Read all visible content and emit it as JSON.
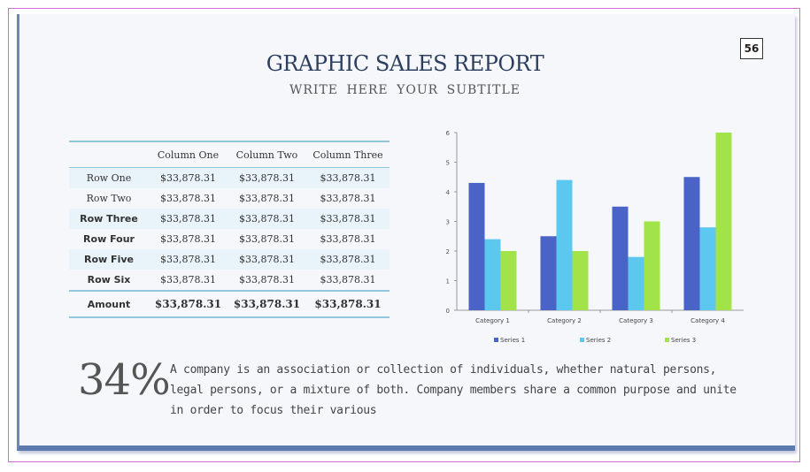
{
  "slide_number": "56",
  "title": "GRAPHIC SALES REPORT",
  "subtitle": "WRITE HERE YOUR SUBTITLE",
  "table": {
    "columns": [
      "",
      "Column One",
      "Column Two",
      "Column Three"
    ],
    "rows": [
      {
        "label": "Row One",
        "bold": false,
        "values": [
          "$33,878.31",
          "$33,878.31",
          "$33,878.31"
        ]
      },
      {
        "label": "Row Two",
        "bold": false,
        "values": [
          "$33,878.31",
          "$33,878.31",
          "$33,878.31"
        ]
      },
      {
        "label": "Row Three",
        "bold": true,
        "values": [
          "$33,878.31",
          "$33,878.31",
          "$33,878.31"
        ]
      },
      {
        "label": "Row Four",
        "bold": true,
        "values": [
          "$33,878.31",
          "$33,878.31",
          "$33,878.31"
        ]
      },
      {
        "label": "Row Five",
        "bold": true,
        "values": [
          "$33,878.31",
          "$33,878.31",
          "$33,878.31"
        ]
      },
      {
        "label": "Row Six",
        "bold": true,
        "values": [
          "$33,878.31",
          "$33,878.31",
          "$33,878.31"
        ]
      }
    ],
    "footer": {
      "label": "Amount",
      "values": [
        "$33,878.31",
        "$33,878.31",
        "$33,878.31"
      ]
    }
  },
  "chart_data": {
    "type": "bar",
    "categories": [
      "Category 1",
      "Category 2",
      "Category 3",
      "Category 4"
    ],
    "series": [
      {
        "name": "Series 1",
        "color": "#4a63c7",
        "values": [
          4.3,
          2.5,
          3.5,
          4.5
        ]
      },
      {
        "name": "Series 2",
        "color": "#5cc8f0",
        "values": [
          2.4,
          4.4,
          1.8,
          2.8
        ]
      },
      {
        "name": "Series 3",
        "color": "#a3e34a",
        "values": [
          2.0,
          2.0,
          3.0,
          6.0
        ]
      }
    ],
    "ylim": [
      0,
      6
    ],
    "yticks": [
      "0",
      "1",
      "2",
      "3",
      "4",
      "5",
      "6"
    ],
    "legend_position": "bottom",
    "grid": false
  },
  "highlight": {
    "percent": "34%",
    "text": "A company is an association or collection of individuals, whether natural persons, legal persons, or a mixture of both. Company members share a common purpose and unite in order to focus their various"
  }
}
